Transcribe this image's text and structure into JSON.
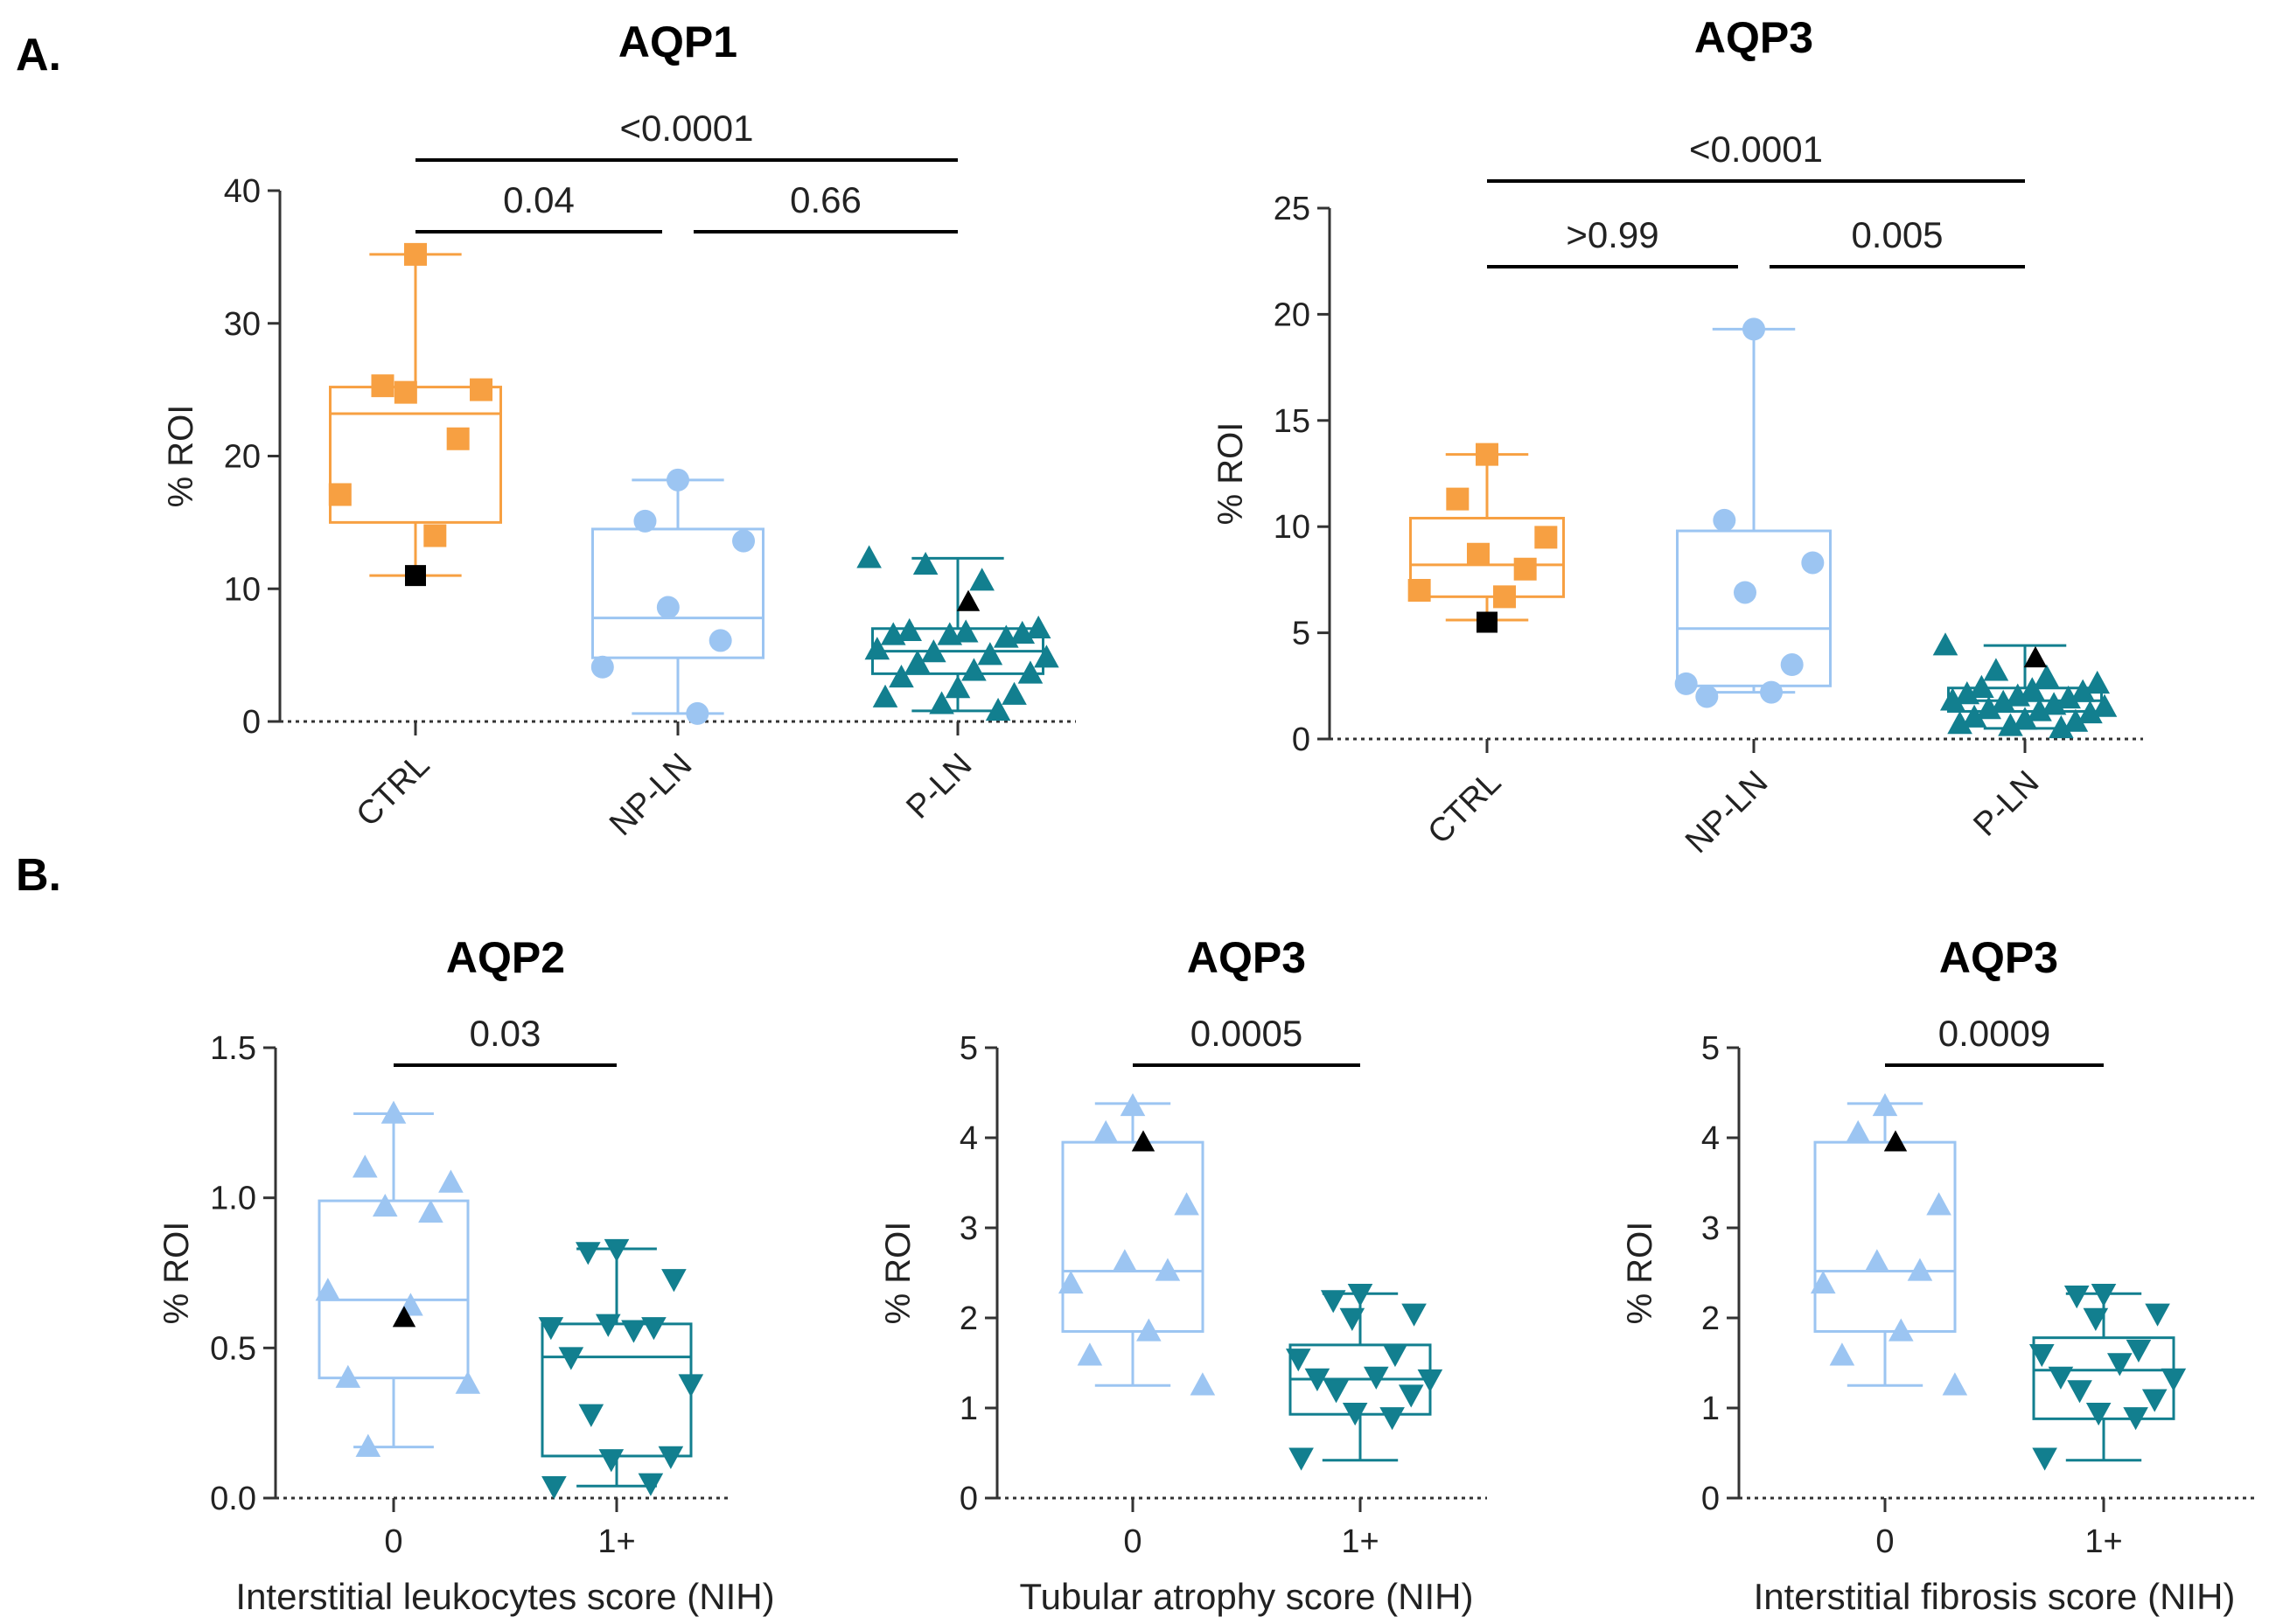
{
  "panel_labels": [
    "A.",
    "B."
  ],
  "chart_data": [
    {
      "type": "box",
      "title": "AQP1",
      "ylabel": "% ROI",
      "xlabel": "",
      "ylim": [
        0,
        40
      ],
      "yticks": [
        0,
        10,
        20,
        30,
        40
      ],
      "categories": [
        "CTRL",
        "NP-LN",
        "P-LN"
      ],
      "colors": [
        "#f7a042",
        "#9cc5f2",
        "#127f8f"
      ],
      "markers": [
        "square",
        "circle",
        "triangle"
      ],
      "boxes": [
        {
          "min": 11,
          "q1": 15,
          "median": 23.2,
          "q3": 25.2,
          "max": 35.2
        },
        {
          "min": 0.6,
          "q1": 4.8,
          "median": 7.8,
          "q3": 14.5,
          "max": 18.2
        },
        {
          "min": 0.8,
          "q1": 3.6,
          "median": 5.3,
          "q3": 7,
          "max": 12.3
        }
      ],
      "points": [
        [
          35.2,
          25.3,
          25,
          24.8,
          21.3,
          17.1,
          14
        ],
        [
          18.2,
          15.1,
          13.6,
          8.6,
          6.1,
          4.1,
          0.6
        ],
        [
          12.3,
          11.8,
          10.6,
          7,
          6.8,
          6.7,
          6.6,
          6.5,
          6.5,
          6.3,
          5.4,
          5.2,
          5,
          4.8,
          4.4,
          3.8,
          3.6,
          3.3,
          2.5,
          2.0,
          1.8,
          1.3,
          0.8
        ]
      ],
      "highlight": [
        {
          "group": 0,
          "value": 11,
          "marker": "square"
        },
        {
          "group": 2,
          "value": 9,
          "marker": "triangle"
        }
      ],
      "comparisons": [
        {
          "from": 0,
          "to": 1,
          "label": "0.04",
          "level": 0
        },
        {
          "from": 1,
          "to": 2,
          "label": "0.66",
          "level": 0
        },
        {
          "from": 0,
          "to": 2,
          "label": "<0.0001",
          "level": 1
        }
      ]
    },
    {
      "type": "box",
      "title": "AQP3",
      "ylabel": "% ROI",
      "xlabel": "",
      "ylim": [
        0,
        25
      ],
      "yticks": [
        0,
        5,
        10,
        15,
        20,
        25
      ],
      "categories": [
        "CTRL",
        "NP-LN",
        "P-LN"
      ],
      "colors": [
        "#f7a042",
        "#9cc5f2",
        "#127f8f"
      ],
      "markers": [
        "square",
        "circle",
        "triangle"
      ],
      "boxes": [
        {
          "min": 5.6,
          "q1": 6.7,
          "median": 8.2,
          "q3": 10.4,
          "max": 13.4
        },
        {
          "min": 2.2,
          "q1": 2.5,
          "median": 5.2,
          "q3": 9.8,
          "max": 19.3
        },
        {
          "min": 0.5,
          "q1": 1.3,
          "median": 1.8,
          "q3": 2.4,
          "max": 4.4
        }
      ],
      "points": [
        [
          13.4,
          11.3,
          9.5,
          8.7,
          8.0,
          7.0,
          6.7
        ],
        [
          19.3,
          10.3,
          8.3,
          6.9,
          3.5,
          2.6,
          2.2,
          2.0
        ],
        [
          4.4,
          3.2,
          2.9,
          2.6,
          2.4,
          2.3,
          2.2,
          2.1,
          2.0,
          1.9,
          1.8,
          1.7,
          1.6,
          1.5,
          1.4,
          1.3,
          1.2,
          1.0,
          0.9,
          0.8,
          0.7,
          0.6,
          0.5
        ]
      ],
      "highlight": [
        {
          "group": 0,
          "value": 5.5,
          "marker": "square"
        },
        {
          "group": 2,
          "value": 3.8,
          "marker": "triangle"
        }
      ],
      "comparisons": [
        {
          "from": 0,
          "to": 1,
          "label": ">0.99",
          "level": 0
        },
        {
          "from": 1,
          "to": 2,
          "label": "0.005",
          "level": 0
        },
        {
          "from": 0,
          "to": 2,
          "label": "<0.0001",
          "level": 1
        }
      ]
    },
    {
      "type": "box",
      "title": "AQP2",
      "ylabel": "% ROI",
      "xlabel": "Interstitial leukocytes score (NIH)",
      "ylim": [
        0,
        1.5
      ],
      "yticks": [
        0,
        0.5,
        1.0,
        1.5
      ],
      "yticklabels": [
        "0.0",
        "0.5",
        "1.0",
        "1.5"
      ],
      "categories": [
        "0",
        "1+"
      ],
      "colors": [
        "#9cc5f2",
        "#127f8f"
      ],
      "markers": [
        "triangle",
        "triangle-down"
      ],
      "boxes": [
        {
          "min": 0.17,
          "q1": 0.4,
          "median": 0.66,
          "q3": 0.99,
          "max": 1.28
        },
        {
          "min": 0.04,
          "q1": 0.14,
          "median": 0.47,
          "q3": 0.58,
          "max": 0.83
        }
      ],
      "points": [
        [
          1.28,
          1.1,
          1.05,
          0.97,
          0.95,
          0.69,
          0.64,
          0.4,
          0.38,
          0.17
        ],
        [
          0.83,
          0.82,
          0.73,
          0.58,
          0.57,
          0.57,
          0.56,
          0.47,
          0.38,
          0.28,
          0.14,
          0.13,
          0.05,
          0.04
        ]
      ],
      "highlight": [
        {
          "group": 0,
          "value": 0.6,
          "marker": "triangle"
        }
      ],
      "comparisons": [
        {
          "from": 0,
          "to": 1,
          "label": "0.03",
          "level": 0
        }
      ]
    },
    {
      "type": "box",
      "title": "AQP3",
      "ylabel": "% ROI",
      "xlabel": "Tubular atrophy score (NIH)",
      "ylim": [
        0,
        5
      ],
      "yticks": [
        0,
        1,
        2,
        3,
        4,
        5
      ],
      "categories": [
        "0",
        "1+"
      ],
      "colors": [
        "#9cc5f2",
        "#127f8f"
      ],
      "markers": [
        "triangle",
        "triangle-down"
      ],
      "boxes": [
        {
          "min": 1.25,
          "q1": 1.85,
          "median": 2.52,
          "q3": 3.95,
          "max": 4.38
        },
        {
          "min": 0.42,
          "q1": 0.93,
          "median": 1.32,
          "q3": 1.7,
          "max": 2.27
        }
      ],
      "points": [
        [
          4.35,
          4.05,
          3.25,
          2.62,
          2.52,
          2.38,
          1.85,
          1.58,
          1.25
        ],
        [
          2.27,
          2.2,
          2.05,
          2.0,
          1.6,
          1.55,
          1.35,
          1.33,
          1.32,
          1.2,
          1.15,
          0.95,
          0.9,
          0.45
        ]
      ],
      "highlight": [
        {
          "group": 0,
          "value": 3.95,
          "marker": "triangle"
        }
      ],
      "comparisons": [
        {
          "from": 0,
          "to": 1,
          "label": "0.0005",
          "level": 0
        }
      ]
    },
    {
      "type": "box",
      "title": "AQP3",
      "ylabel": "% ROI",
      "xlabel": "Interstitial fibrosis score (NIH)",
      "ylim": [
        0,
        5
      ],
      "yticks": [
        0,
        1,
        2,
        3,
        4,
        5
      ],
      "categories": [
        "0",
        "1+"
      ],
      "colors": [
        "#9cc5f2",
        "#127f8f"
      ],
      "markers": [
        "triangle",
        "triangle-down"
      ],
      "boxes": [
        {
          "min": 1.25,
          "q1": 1.85,
          "median": 2.52,
          "q3": 3.95,
          "max": 4.38
        },
        {
          "min": 0.42,
          "q1": 0.88,
          "median": 1.42,
          "q3": 1.78,
          "max": 2.27
        }
      ],
      "points": [
        [
          4.35,
          4.05,
          3.25,
          2.62,
          2.52,
          2.38,
          1.85,
          1.58,
          1.25
        ],
        [
          2.27,
          2.25,
          2.05,
          2.0,
          1.65,
          1.6,
          1.5,
          1.35,
          1.33,
          1.2,
          1.1,
          0.95,
          0.9,
          0.45
        ]
      ],
      "highlight": [
        {
          "group": 0,
          "value": 3.95,
          "marker": "triangle"
        }
      ],
      "comparisons": [
        {
          "from": 0,
          "to": 1,
          "label": "0.0009",
          "level": 0
        }
      ]
    }
  ]
}
